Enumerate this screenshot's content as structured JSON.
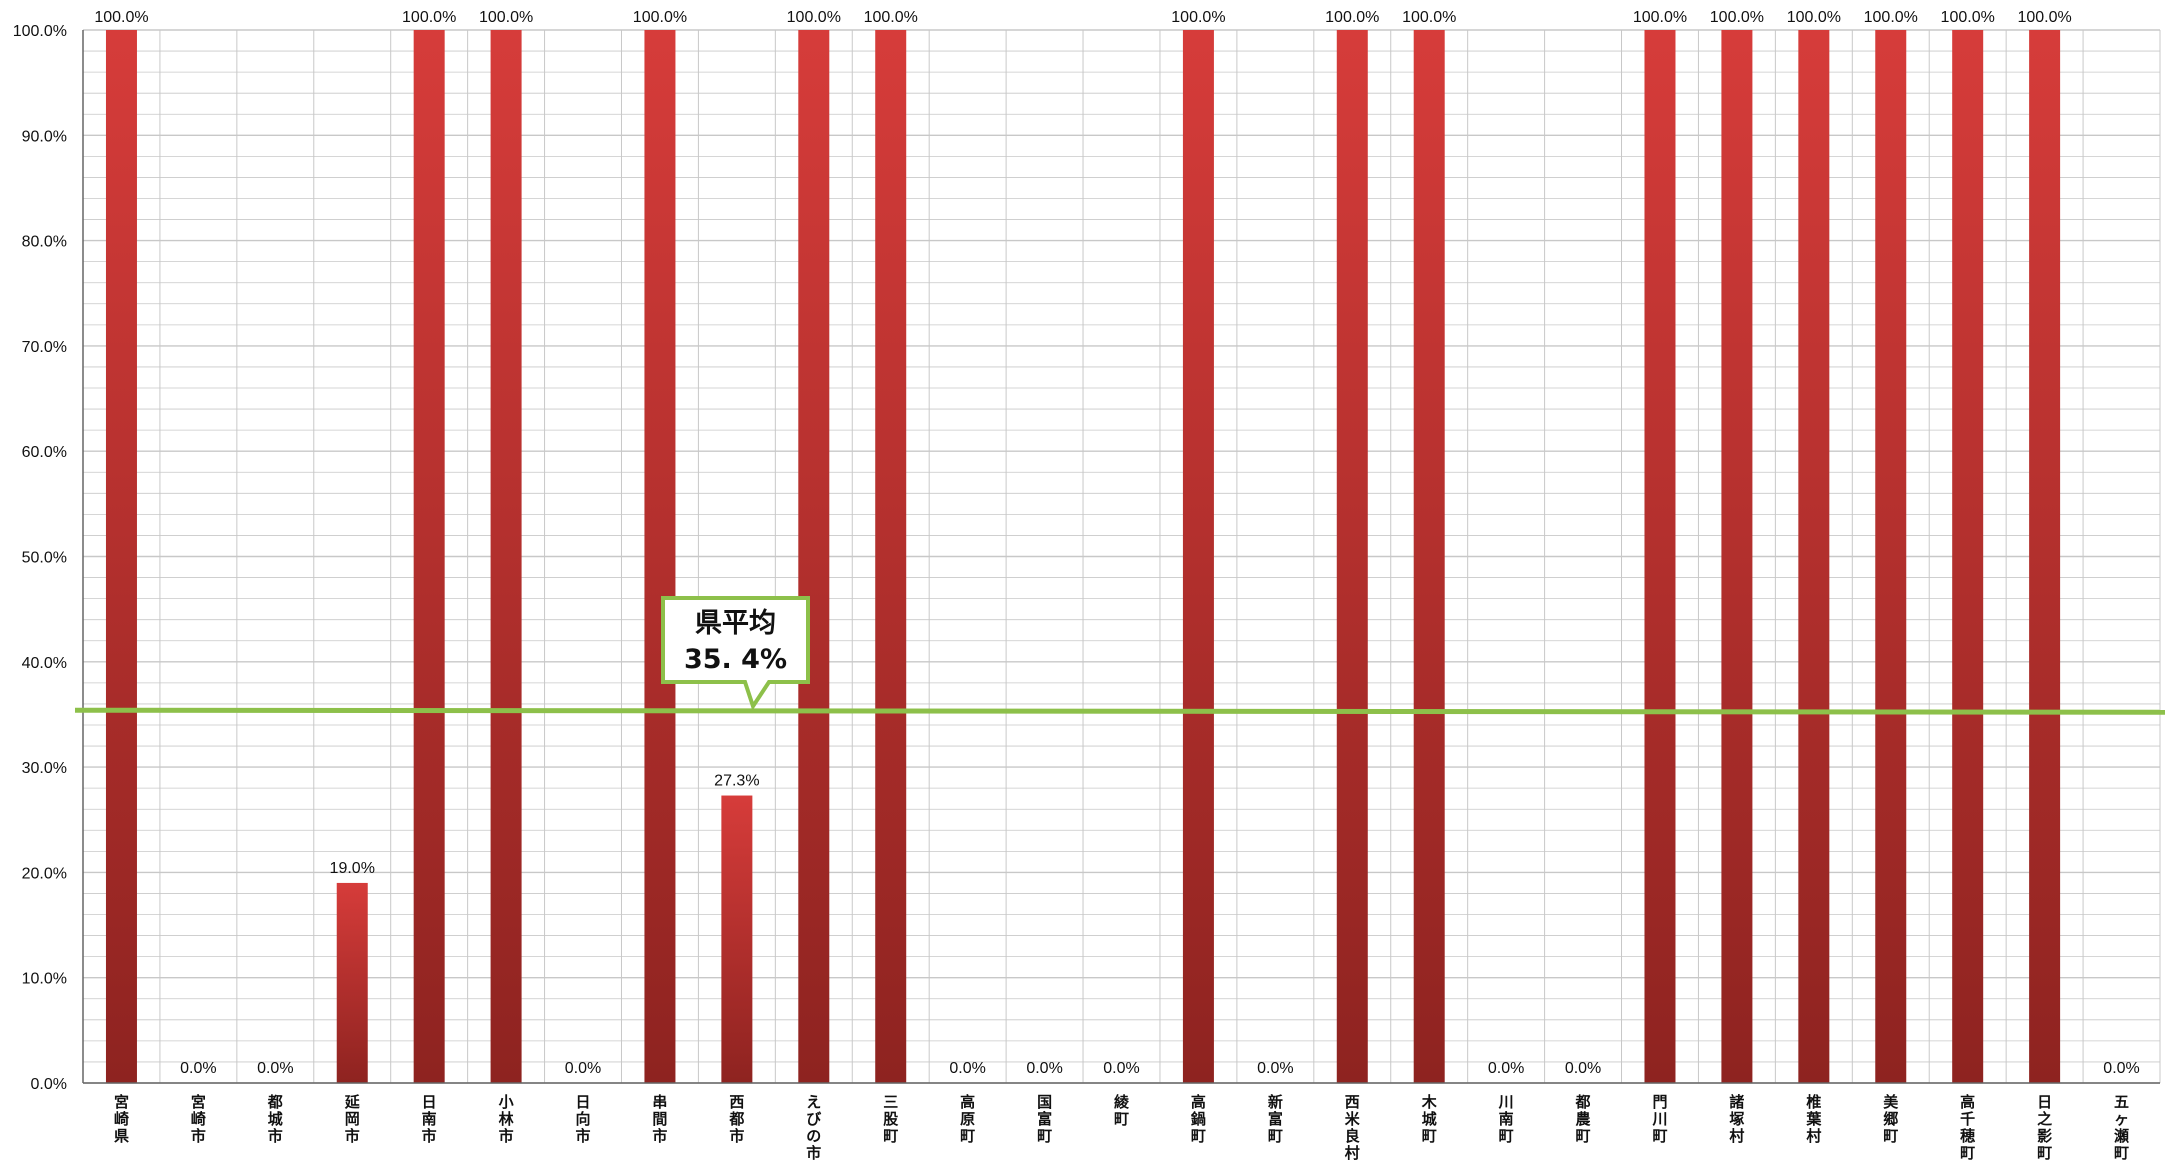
{
  "chart_data": {
    "type": "bar",
    "categories": [
      "宮崎県",
      "宮崎市",
      "都城市",
      "延岡市",
      "日南市",
      "小林市",
      "日向市",
      "串間市",
      "西都市",
      "えびの市",
      "三股町",
      "高原町",
      "国富町",
      "綾町",
      "高鍋町",
      "新富町",
      "西米良村",
      "木城町",
      "川南町",
      "都農町",
      "門川町",
      "諸塚村",
      "椎葉村",
      "美郷町",
      "高千穂町",
      "日之影町",
      "五ヶ瀬町"
    ],
    "values": [
      100,
      0,
      0,
      19,
      100,
      100,
      0,
      100,
      27.3,
      100,
      100,
      0,
      0,
      0,
      100,
      0,
      100,
      100,
      0,
      0,
      100,
      100,
      100,
      100,
      100,
      100,
      0
    ],
    "value_labels": [
      "100.0%",
      "0.0%",
      "0.0%",
      "19.0%",
      "100.0%",
      "100.0%",
      "0.0%",
      "100.0%",
      "27.3%",
      "100.0%",
      "100.0%",
      "0.0%",
      "0.0%",
      "0.0%",
      "100.0%",
      "0.0%",
      "100.0%",
      "100.0%",
      "0.0%",
      "0.0%",
      "100.0%",
      "100.0%",
      "100.0%",
      "100.0%",
      "100.0%",
      "100.0%",
      "0.0%"
    ],
    "ylim": [
      0,
      100
    ],
    "yticks": [
      0,
      10,
      20,
      30,
      40,
      50,
      60,
      70,
      80,
      90,
      100
    ],
    "ytick_labels": [
      "0.0%",
      "10.0%",
      "20.0%",
      "30.0%",
      "40.0%",
      "50.0%",
      "60.0%",
      "70.0%",
      "80.0%",
      "90.0%",
      "100.0%"
    ],
    "grid": true,
    "average": {
      "value": 35.4,
      "label_line1": "県平均",
      "label_line2": "35. 4%"
    },
    "colors": {
      "bar_top": "#d63c3a",
      "bar_bottom": "#8e2320",
      "average_line": "#8dc04a",
      "grid": "#c8c8c8",
      "axis": "#666666"
    }
  }
}
